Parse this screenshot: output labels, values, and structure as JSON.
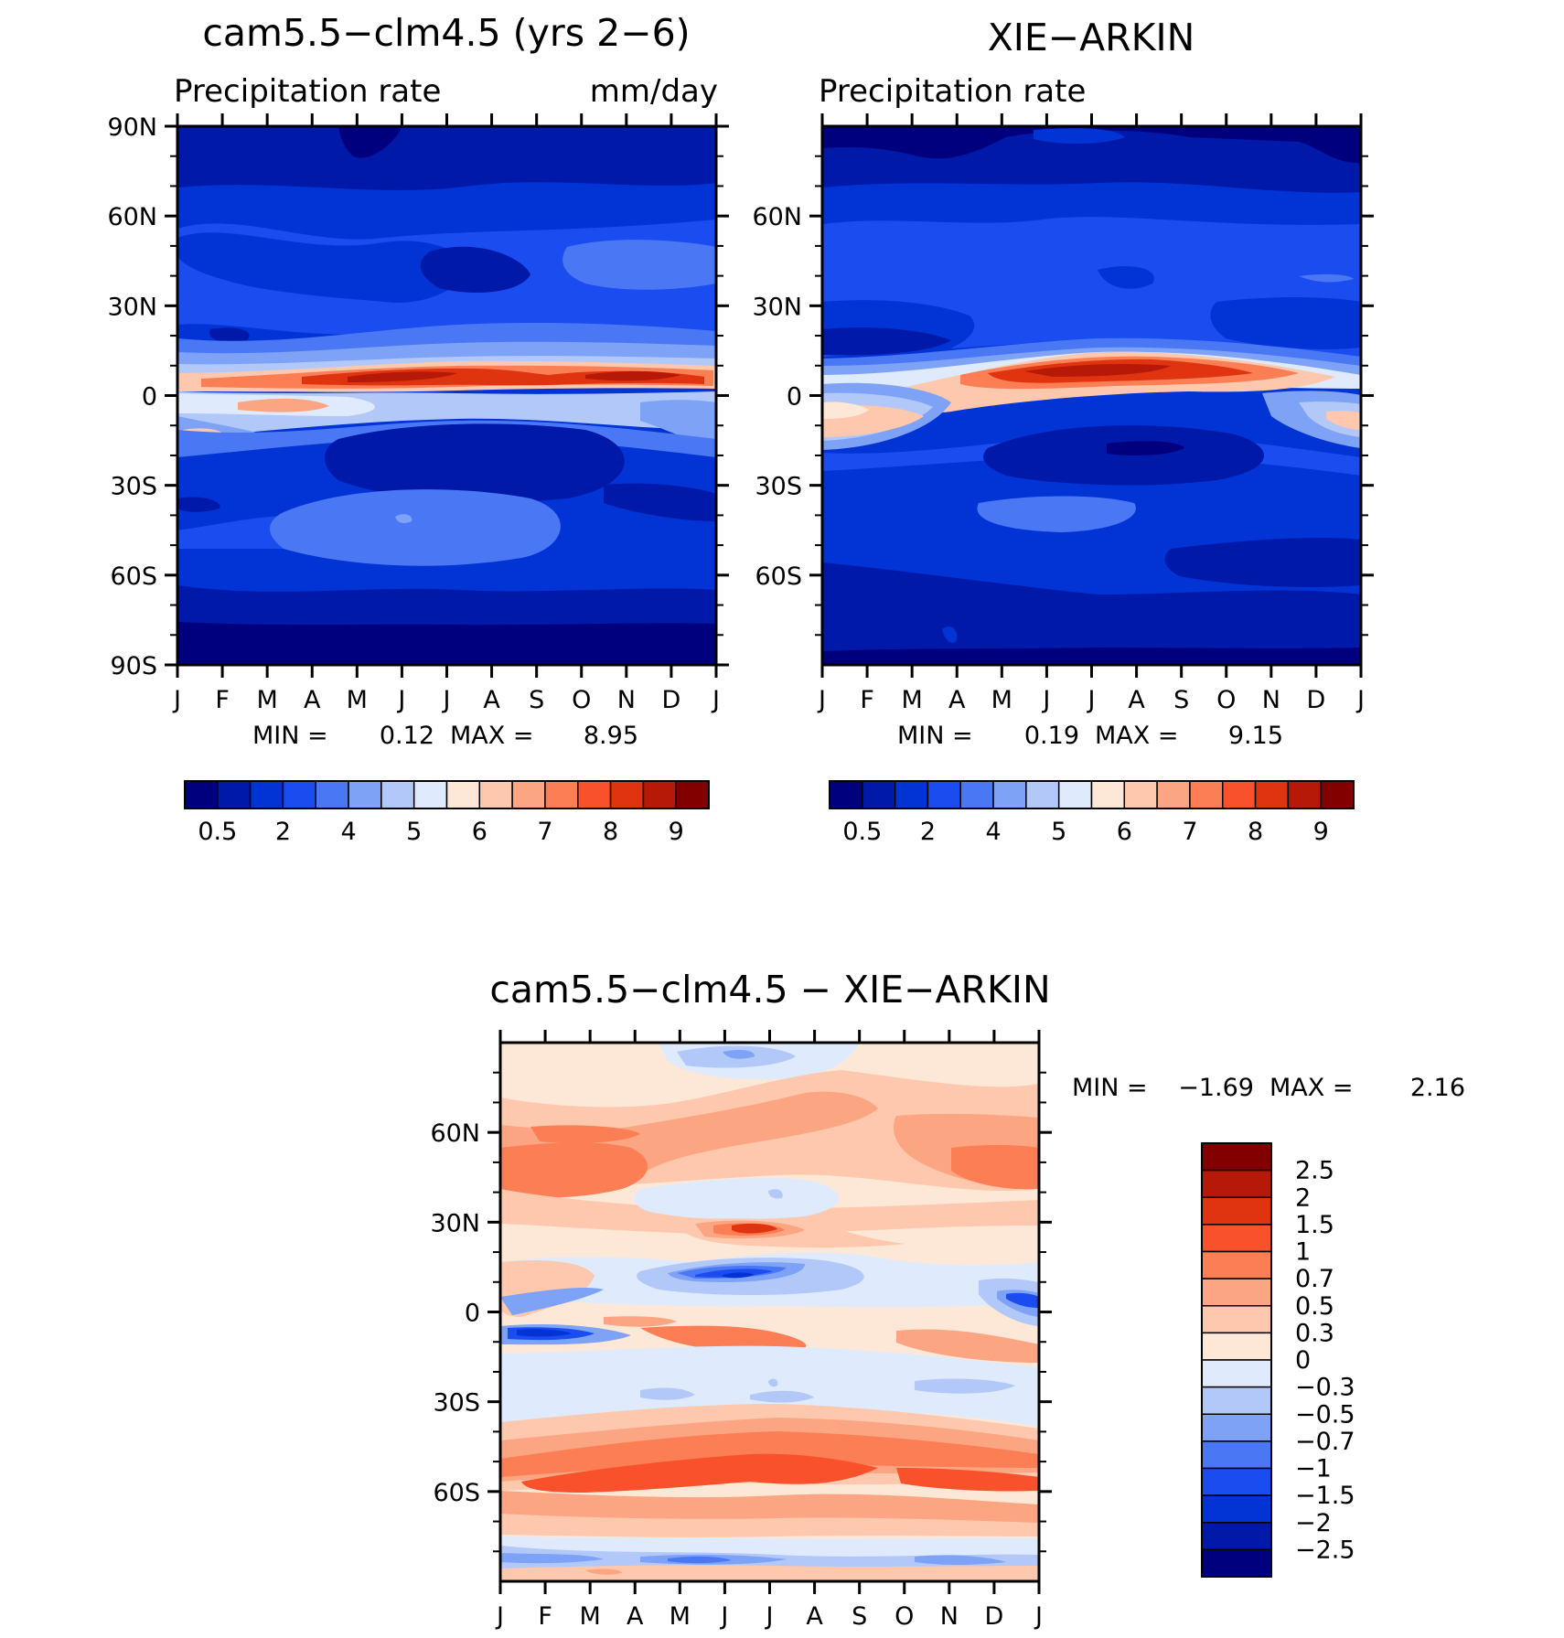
{
  "chart_data": [
    {
      "type": "heatmap",
      "title": "cam5.5−clm4.5 (yrs 2−6)",
      "left_subtitle": "Precipitation rate",
      "right_subtitle": "mm/day",
      "x_tick_labels": [
        "J",
        "F",
        "M",
        "A",
        "M",
        "J",
        "J",
        "A",
        "S",
        "O",
        "N",
        "D",
        "J"
      ],
      "y_tick_labels": [
        "90N",
        "60N",
        "30N",
        "0",
        "30S",
        "60S",
        "90S"
      ],
      "y_values": [
        90,
        60,
        30,
        0,
        -30,
        -60,
        -90
      ],
      "ylim": [
        -90,
        90
      ],
      "min_label": "MIN =",
      "min_value": "0.12",
      "max_label": "MAX =",
      "max_value": "8.95",
      "colorbar": {
        "labels": [
          "0.5",
          "2",
          "4",
          "5",
          "6",
          "7",
          "8",
          "9"
        ],
        "colors": [
          "#00007f",
          "#0019a8",
          "#0233d4",
          "#1a4cf0",
          "#4a78f5",
          "#7da2f6",
          "#b2c8f9",
          "#dfeafc",
          "#fde8d8",
          "#fdc8ad",
          "#fca582",
          "#fb7e54",
          "#f9512b",
          "#df340f",
          "#b61907",
          "#820000"
        ]
      }
    },
    {
      "type": "heatmap",
      "title": "XIE−ARKIN",
      "left_subtitle": "Precipitation rate",
      "x_tick_labels": [
        "J",
        "F",
        "M",
        "A",
        "M",
        "J",
        "J",
        "A",
        "S",
        "O",
        "N",
        "D",
        "J"
      ],
      "y_tick_labels": [
        "60N",
        "30N",
        "0",
        "30S",
        "60S"
      ],
      "y_values": [
        60,
        30,
        0,
        -30,
        -60
      ],
      "ylim": [
        -90,
        90
      ],
      "min_label": "MIN =",
      "min_value": "0.19",
      "max_label": "MAX =",
      "max_value": "9.15",
      "colorbar": {
        "labels": [
          "0.5",
          "2",
          "4",
          "5",
          "6",
          "7",
          "8",
          "9"
        ],
        "colors": [
          "#00007f",
          "#0019a8",
          "#0233d4",
          "#1a4cf0",
          "#4a78f5",
          "#7da2f6",
          "#b2c8f9",
          "#dfeafc",
          "#fde8d8",
          "#fdc8ad",
          "#fca582",
          "#fb7e54",
          "#f9512b",
          "#df340f",
          "#b61907",
          "#820000"
        ]
      }
    },
    {
      "type": "heatmap",
      "title": "cam5.5−clm4.5 − XIE−ARKIN",
      "x_tick_labels": [
        "J",
        "F",
        "M",
        "A",
        "M",
        "J",
        "J",
        "A",
        "S",
        "O",
        "N",
        "D",
        "J"
      ],
      "y_tick_labels": [
        "60N",
        "30N",
        "0",
        "30S",
        "60S"
      ],
      "y_values": [
        60,
        30,
        0,
        -30,
        -60
      ],
      "ylim": [
        -90,
        90
      ],
      "min_label": "MIN =",
      "min_value": "−1.69",
      "max_label": "MAX =",
      "max_value": "2.16",
      "colorbar": {
        "labels": [
          "2.5",
          "2",
          "1.5",
          "1",
          "0.7",
          "0.5",
          "0.3",
          "0",
          "−0.3",
          "−0.5",
          "−0.7",
          "−1",
          "−1.5",
          "−2",
          "−2.5"
        ],
        "colors": [
          "#820000",
          "#b61907",
          "#df340f",
          "#f9512b",
          "#fb7e54",
          "#fca582",
          "#fdc8ad",
          "#fde8d8",
          "#dfeafc",
          "#b2c8f9",
          "#7da2f6",
          "#4a78f5",
          "#1a4cf0",
          "#0233d4",
          "#0019a8",
          "#00007f"
        ]
      }
    }
  ]
}
